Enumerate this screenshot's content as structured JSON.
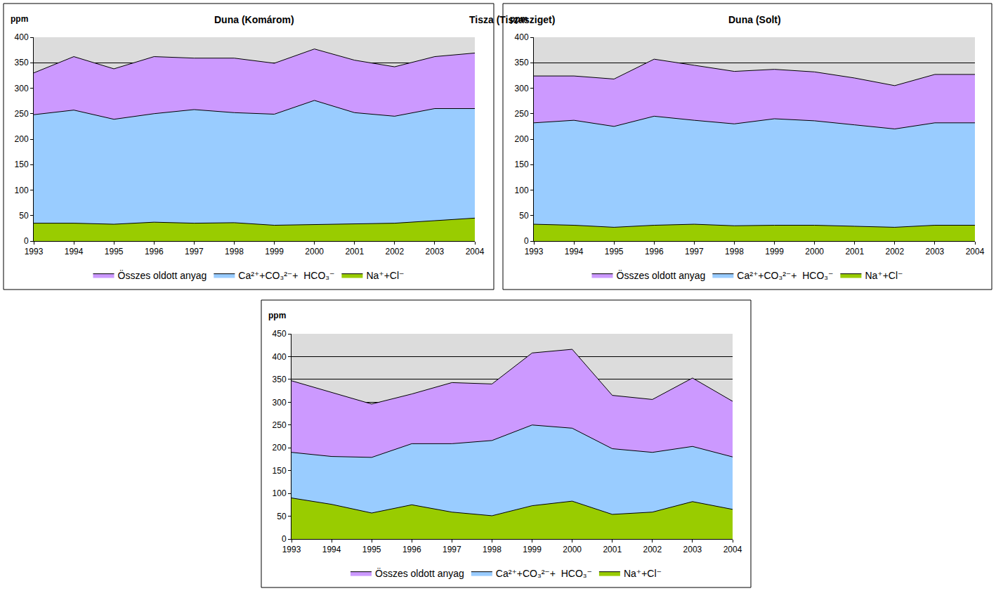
{
  "chart_data": [
    {
      "type": "area",
      "title": "Duna (Komárom)",
      "y_label": "ppm",
      "stacked": false,
      "grid": true,
      "legend": "bottom",
      "x": [
        1993,
        1994,
        1995,
        1996,
        1997,
        1998,
        1999,
        2000,
        2001,
        2002,
        2003,
        2004
      ],
      "xlim": [
        1993,
        2004
      ],
      "xticks": [
        1993,
        1994,
        1995,
        1996,
        1997,
        1998,
        1999,
        2000,
        2001,
        2002,
        2003,
        2004
      ],
      "ylim": [
        0,
        400
      ],
      "yticks": [
        0,
        50,
        100,
        150,
        200,
        250,
        300,
        350,
        400
      ],
      "series": [
        {
          "name": "Összes oldott anyag",
          "color": "#cc99ff",
          "values": [
            330,
            362,
            338,
            362,
            359,
            359,
            349,
            377,
            355,
            342,
            362,
            369
          ]
        },
        {
          "name": "Ca²⁺+CO₃²⁻+  HCO₃⁻",
          "color": "#99ccff",
          "values": [
            248,
            257,
            239,
            250,
            258,
            252,
            249,
            276,
            252,
            245,
            260,
            260
          ]
        },
        {
          "name": "Na⁺+Cl⁻",
          "color": "#99cc00",
          "values": [
            35,
            35,
            33,
            37,
            35,
            36,
            31,
            32,
            33,
            35,
            40,
            45
          ]
        }
      ]
    },
    {
      "type": "area",
      "title": "Duna (Solt)",
      "y_label": "ppm",
      "stacked": false,
      "grid": true,
      "legend": "bottom",
      "x": [
        1993,
        1994,
        1995,
        1996,
        1997,
        1998,
        1999,
        2000,
        2001,
        2002,
        2003,
        2004
      ],
      "xlim": [
        1993,
        2004
      ],
      "xticks": [
        1993,
        1994,
        1995,
        1996,
        1997,
        1998,
        1999,
        2000,
        2001,
        2002,
        2003,
        2004
      ],
      "ylim": [
        0,
        400
      ],
      "yticks": [
        0,
        50,
        100,
        150,
        200,
        250,
        300,
        350,
        400
      ],
      "series": [
        {
          "name": "Összes oldott anyag",
          "color": "#cc99ff",
          "values": [
            324,
            324,
            318,
            357,
            345,
            333,
            337,
            332,
            320,
            305,
            327,
            327
          ]
        },
        {
          "name": "Ca²⁺+CO₃²⁻+  HCO₃⁻",
          "color": "#99ccff",
          "values": [
            232,
            237,
            225,
            245,
            237,
            230,
            240,
            236,
            228,
            220,
            232,
            232
          ]
        },
        {
          "name": "Na⁺+Cl⁻",
          "color": "#99cc00",
          "values": [
            33,
            31,
            27,
            31,
            33,
            30,
            31,
            31,
            29,
            27,
            31,
            31
          ]
        }
      ]
    },
    {
      "type": "area",
      "title": "Tisza (Tiszasziget)",
      "y_label": "ppm",
      "stacked": false,
      "grid": true,
      "legend": "bottom",
      "x": [
        1993,
        1994,
        1995,
        1996,
        1997,
        1998,
        1999,
        2000,
        2001,
        2002,
        2003,
        2004
      ],
      "xlim": [
        1993,
        2004
      ],
      "xticks": [
        1993,
        1994,
        1995,
        1996,
        1997,
        1998,
        1999,
        2000,
        2001,
        2002,
        2003,
        2004
      ],
      "ylim": [
        0,
        450
      ],
      "yticks": [
        0,
        50,
        100,
        150,
        200,
        250,
        300,
        350,
        400,
        450
      ],
      "series": [
        {
          "name": "Összes oldott anyag",
          "color": "#cc99ff",
          "values": [
            347,
            322,
            296,
            318,
            343,
            340,
            408,
            416,
            315,
            306,
            353,
            302
          ]
        },
        {
          "name": "Ca²⁺+CO₃²⁻+  HCO₃⁻",
          "color": "#99ccff",
          "values": [
            190,
            181,
            179,
            209,
            209,
            216,
            250,
            243,
            198,
            190,
            203,
            180
          ]
        },
        {
          "name": "Na⁺+Cl⁻",
          "color": "#99cc00",
          "values": [
            90,
            76,
            57,
            75,
            59,
            51,
            73,
            83,
            54,
            59,
            82,
            65
          ]
        }
      ]
    }
  ]
}
